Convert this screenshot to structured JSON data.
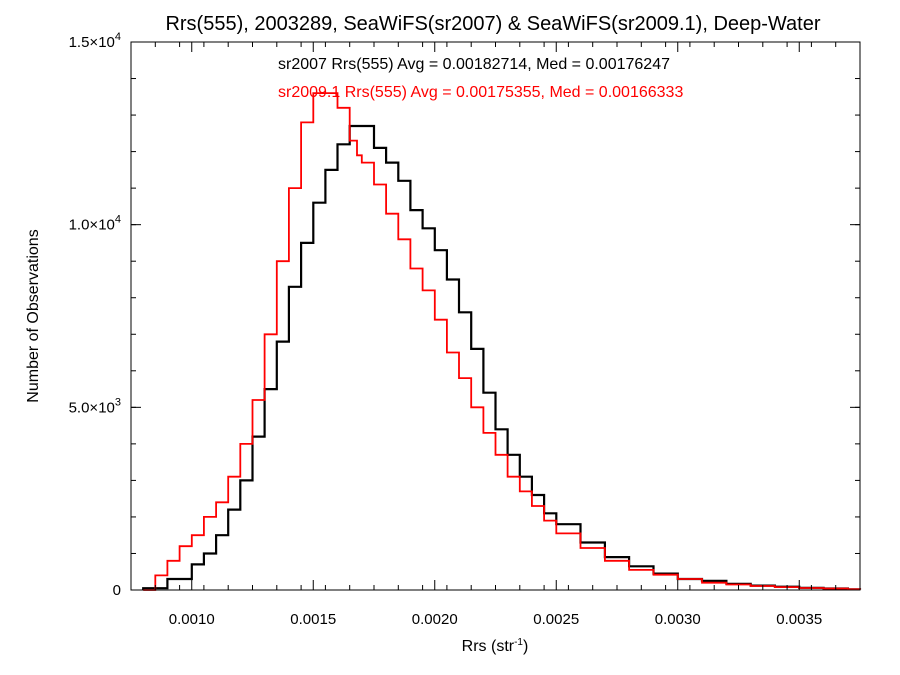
{
  "chart_data": {
    "type": "line",
    "title": "Rrs(555), 2003289, SeaWiFS(sr2007) & SeaWiFS(sr2009.1), Deep-Water",
    "xlabel": "Rrs (str",
    "xlabel_sup": "-1",
    "xlabel_end": ")",
    "ylabel": "Number of Observations",
    "xlim": [
      0.00075,
      0.00375
    ],
    "ylim": [
      0,
      15000
    ],
    "xticks": [
      0.001,
      0.0015,
      0.002,
      0.0025,
      0.003,
      0.0035
    ],
    "xtick_labels": [
      "0.0010",
      "0.0015",
      "0.0020",
      "0.0025",
      "0.0030",
      "0.0035"
    ],
    "yticks": [
      {
        "value": 0,
        "base": "0",
        "exp": ""
      },
      {
        "value": 5000,
        "base": "5.0×10",
        "exp": "3"
      },
      {
        "value": 10000,
        "base": "1.0×10",
        "exp": "4"
      },
      {
        "value": 15000,
        "base": "1.5×10",
        "exp": "4"
      }
    ],
    "grid": false,
    "legend": "top-center",
    "annotations": [
      {
        "text": "sr2007 Rrs(555) Avg = 0.00182714, Med = 0.00176247",
        "color": "#000000"
      },
      {
        "text": "sr2009.1 Rrs(555) Avg = 0.00175355, Med = 0.00166333",
        "color": "#ff0000"
      }
    ],
    "series": [
      {
        "name": "sr2007",
        "color": "#000000",
        "style": "step",
        "x": [
          0.0008,
          0.0009,
          0.001,
          0.00105,
          0.0011,
          0.00115,
          0.0012,
          0.00125,
          0.0013,
          0.00135,
          0.0014,
          0.00145,
          0.0015,
          0.00155,
          0.0016,
          0.00165,
          0.0017,
          0.00175,
          0.0018,
          0.00185,
          0.0019,
          0.00195,
          0.002,
          0.00205,
          0.0021,
          0.00215,
          0.0022,
          0.00225,
          0.0023,
          0.00235,
          0.0024,
          0.00245,
          0.0025,
          0.0026,
          0.0027,
          0.0028,
          0.0029,
          0.003,
          0.0031,
          0.0032,
          0.0033,
          0.0034,
          0.0035,
          0.0036,
          0.0037,
          0.00375
        ],
        "y": [
          50,
          300,
          700,
          1000,
          1500,
          2200,
          3000,
          4200,
          5500,
          6800,
          8300,
          9500,
          10600,
          11500,
          12200,
          12700,
          12700,
          12100,
          11700,
          11200,
          10400,
          9900,
          9300,
          8500,
          7600,
          6600,
          5400,
          4400,
          3700,
          3100,
          2600,
          2100,
          1800,
          1300,
          900,
          650,
          450,
          300,
          250,
          170,
          120,
          90,
          60,
          40,
          20,
          10
        ]
      },
      {
        "name": "sr2009.1",
        "color": "#ff0000",
        "style": "step",
        "x": [
          0.0008,
          0.00085,
          0.0009,
          0.00095,
          0.001,
          0.00105,
          0.0011,
          0.00115,
          0.0012,
          0.00125,
          0.0013,
          0.00135,
          0.0014,
          0.00145,
          0.0015,
          0.00155,
          0.0016,
          0.00165,
          0.00168,
          0.0017,
          0.00175,
          0.0018,
          0.00185,
          0.0019,
          0.00195,
          0.002,
          0.00205,
          0.0021,
          0.00215,
          0.0022,
          0.00225,
          0.0023,
          0.00235,
          0.0024,
          0.00245,
          0.0025,
          0.0026,
          0.0027,
          0.0028,
          0.0029,
          0.003,
          0.0031,
          0.0032,
          0.0033,
          0.0034,
          0.0035,
          0.0036,
          0.0037,
          0.00375
        ],
        "y": [
          0,
          400,
          800,
          1200,
          1500,
          2000,
          2400,
          3100,
          4000,
          5200,
          7000,
          9000,
          11000,
          12800,
          13600,
          13600,
          13200,
          12300,
          11900,
          11700,
          11100,
          10300,
          9600,
          8800,
          8200,
          7400,
          6500,
          5800,
          5000,
          4300,
          3700,
          3100,
          2700,
          2300,
          1900,
          1550,
          1150,
          800,
          550,
          420,
          300,
          200,
          150,
          110,
          80,
          55,
          40,
          20,
          10
        ]
      }
    ]
  }
}
